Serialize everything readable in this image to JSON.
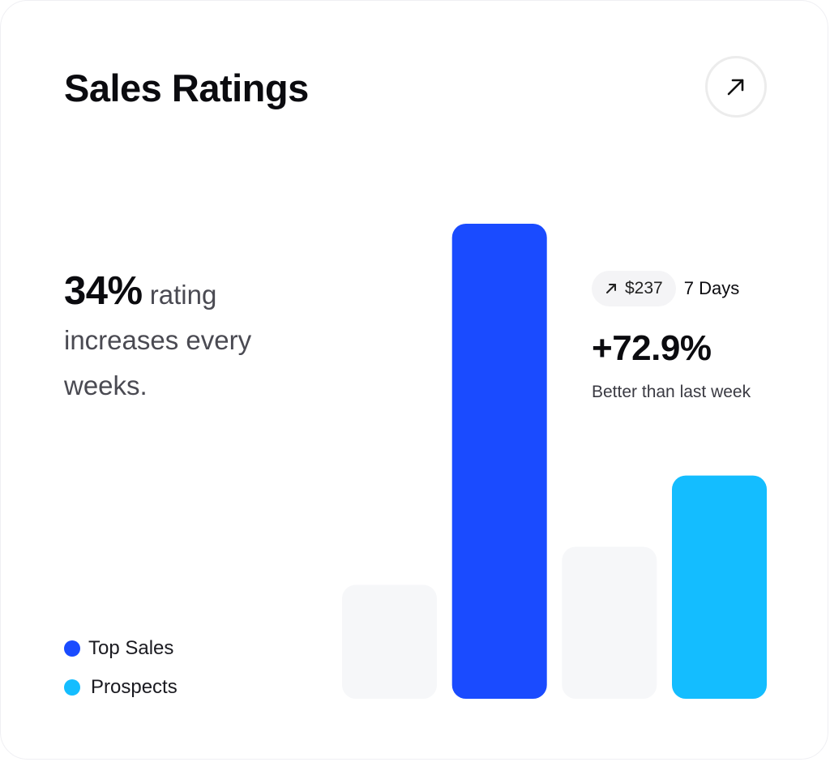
{
  "card": {
    "title": "Sales Ratings",
    "open_icon": "arrow-up-right-icon"
  },
  "summary": {
    "highlight": "34%",
    "text": "rating increases every weeks."
  },
  "stats": {
    "delta_icon": "arrow-up-right-icon",
    "delta_value": "$237",
    "period": "7 Days",
    "change": "+72.9%",
    "note": "Better than last week"
  },
  "colors": {
    "top_sales": "#1a4bff",
    "prospects": "#14bdff",
    "inactive": "#f6f7f9"
  },
  "legend": [
    {
      "label": "Top Sales",
      "color": "#1a4bff"
    },
    {
      "label": "Prospects",
      "color": "#14bdff"
    }
  ],
  "chart_data": {
    "type": "bar",
    "categories": [
      "",
      "",
      "",
      ""
    ],
    "values": [
      24,
      100,
      32,
      47
    ],
    "bar_colors": [
      "#f6f7f9",
      "#1a4bff",
      "#f6f7f9",
      "#14bdff"
    ],
    "ylim": [
      0,
      100
    ],
    "grid": false,
    "legend_position": "bottom-left",
    "axes_visible": false
  }
}
